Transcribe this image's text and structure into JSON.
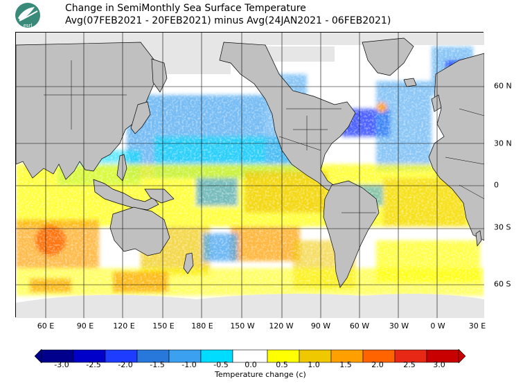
{
  "header": {
    "title_line1": "Change in SemiMonthly Sea Surface Temperature",
    "title_line2": "Avg(07FEB2021 - 20FEB2021) minus Avg(24JAN2021 - 06FEB2021)",
    "logo_text": "esrl",
    "logo_icon": "noaa-logo"
  },
  "axes": {
    "lon_labels": [
      "60 E",
      "90 E",
      "120 E",
      "150 E",
      "180 E",
      "150 W",
      "120 W",
      "90 W",
      "60 W",
      "30 W",
      "0 W",
      "30 E"
    ],
    "lat_labels": [
      "60 N",
      "30 N",
      "0",
      "30 S",
      "60 S"
    ]
  },
  "legend": {
    "title": "Temperature change (c)",
    "ticks": [
      "-3.0",
      "-2.5",
      "-2.0",
      "-1.5",
      "-1.0",
      "-0.5",
      "0.0",
      "0.5",
      "1.0",
      "1.5",
      "2.0",
      "2.5",
      "3.0"
    ],
    "colors": [
      "#00008c",
      "#0000c8",
      "#1e3cff",
      "#2878dc",
      "#3ca0f0",
      "#00dcff",
      "#ffffff",
      "#ffff00",
      "#f0c800",
      "#ffa000",
      "#ff6400",
      "#e62814",
      "#c80000",
      "#aa0000"
    ]
  },
  "colors": {
    "land": "#c0c0c0",
    "ice": "#e6e6e6",
    "gridline": "#000000"
  }
}
